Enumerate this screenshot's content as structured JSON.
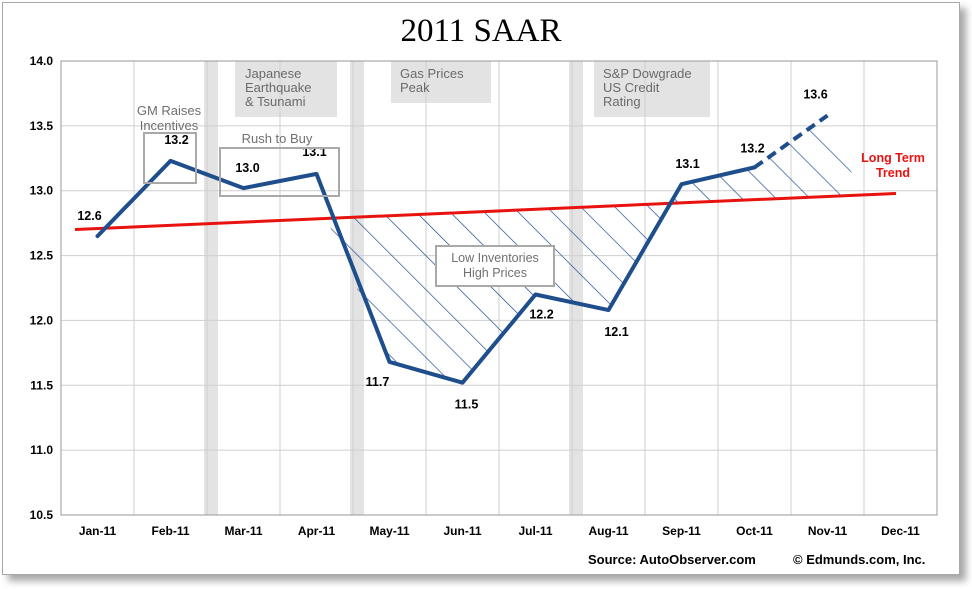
{
  "footer": {
    "source": "Source: AutoObserver.com",
    "copyright": "© Edmunds.com, Inc."
  },
  "chart_data": {
    "type": "line",
    "title": "2011 SAAR",
    "categories": [
      "Jan-11",
      "Feb-11",
      "Mar-11",
      "Apr-11",
      "May-11",
      "Jun-11",
      "Jul-11",
      "Aug-11",
      "Sep-11",
      "Oct-11",
      "Nov-11",
      "Dec-11"
    ],
    "ylim": [
      10.5,
      14.0
    ],
    "yticks": [
      "10.5",
      "11.0",
      "11.5",
      "12.0",
      "12.5",
      "13.0",
      "13.5",
      "14.0"
    ],
    "grid": true,
    "series": [
      {
        "values": [
          12.65,
          13.23,
          13.02,
          13.13,
          11.68,
          11.52,
          12.2,
          12.08,
          13.05,
          13.18,
          null,
          null
        ],
        "data_labels": [
          "12.6",
          "13.2",
          "13.0",
          "13.1",
          "11.7",
          "11.5",
          "12.2",
          "12.1",
          "13.1",
          "13.2",
          "",
          ""
        ],
        "color": "#1F4E8C"
      },
      {
        "values": [
          null,
          null,
          null,
          null,
          null,
          null,
          null,
          null,
          null,
          13.18,
          13.58,
          null
        ],
        "data_labels": [
          "",
          "",
          "",
          "",
          "",
          "",
          "",
          "",
          "",
          "",
          "13.6",
          ""
        ],
        "color": "#1F4E8C",
        "style": "dashed"
      },
      {
        "name": "Long Term Trend",
        "values": [
          12.71,
          12.74,
          12.76,
          12.79,
          12.81,
          12.84,
          12.86,
          12.89,
          12.91,
          12.93,
          12.96,
          12.98
        ],
        "color": "#E8120E"
      }
    ],
    "event_bands": [
      {
        "at": "Mar-11",
        "label": [
          "Japanese",
          "Earthquake",
          "& Tsunami"
        ]
      },
      {
        "at": "May-11",
        "label": [
          "Gas Prices",
          "Peak"
        ]
      },
      {
        "at": "Aug-11",
        "label": [
          "S&P Dowgrade",
          "US Credit",
          "Rating"
        ]
      }
    ],
    "annotations": [
      {
        "text": [
          "GM Raises",
          "Incentives"
        ],
        "near": "Feb-11"
      },
      {
        "text": [
          "Rush to Buy"
        ],
        "near": "Mar-11 to Apr-11"
      },
      {
        "text": [
          "Low Inventories",
          "High Prices"
        ],
        "near": "Jun-11 to Jul-11"
      }
    ],
    "colors": {
      "line": "#1F4E8C",
      "trend": "#E8120E",
      "band": "#E3E3E3",
      "grid": "#CFCFCF",
      "box": "#A9A9A9"
    }
  }
}
